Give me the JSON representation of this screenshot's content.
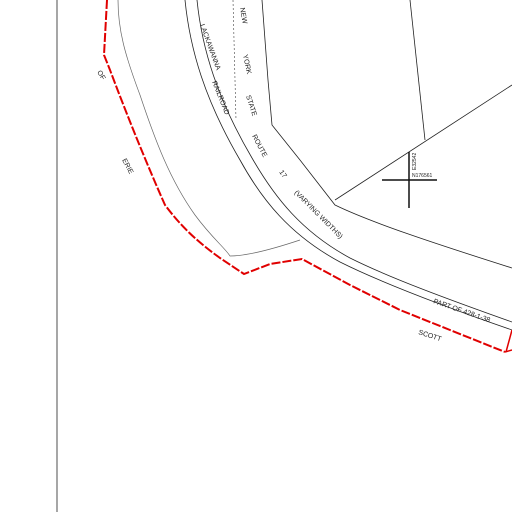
{
  "labels": {
    "of": "OF",
    "erie": "ERIE",
    "lackawanna": "LACKAWANNA",
    "railroad": "RAILROAD",
    "new": "NEW",
    "york": "YORK",
    "state": "STATE",
    "route": "ROUTE",
    "route_number": "17",
    "varying_widths": "(VARYING WIDTHS)",
    "parcel": "PART OF 428-1-38",
    "scott": "SCOTT",
    "northing": "N176561",
    "easting": "E32542"
  }
}
